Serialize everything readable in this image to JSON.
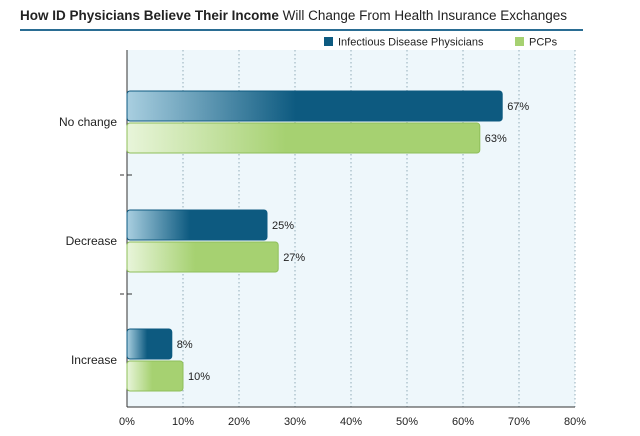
{
  "header": {
    "title_bold": "How ID Physicians Believe Their Income",
    "title_rest": "Will Change From Health Insurance Exchanges"
  },
  "colors": {
    "id_dark": "#0d5a80",
    "id_light": "#a9cfe0",
    "pcp_dark": "#a6d171",
    "pcp_light": "#e8f5da",
    "plot_bg": "#eef7fb",
    "title_rule": "#2a6d93"
  },
  "chart_data": {
    "type": "bar",
    "orientation": "horizontal",
    "categories": [
      "No change",
      "Decrease",
      "Increase"
    ],
    "series": [
      {
        "name": "Infectious Disease Physicians",
        "values": [
          67,
          25,
          8
        ],
        "labels": [
          "67%",
          "25%",
          "8%"
        ]
      },
      {
        "name": "PCPs",
        "values": [
          63,
          27,
          10
        ],
        "labels": [
          "63%",
          "27%",
          "10%"
        ]
      }
    ],
    "xlim": [
      0,
      80
    ],
    "xticks": [
      "0%",
      "10%",
      "20%",
      "30%",
      "40%",
      "50%",
      "60%",
      "70%",
      "80%"
    ],
    "grid": "vertical-dotted",
    "legend": "top-right"
  }
}
